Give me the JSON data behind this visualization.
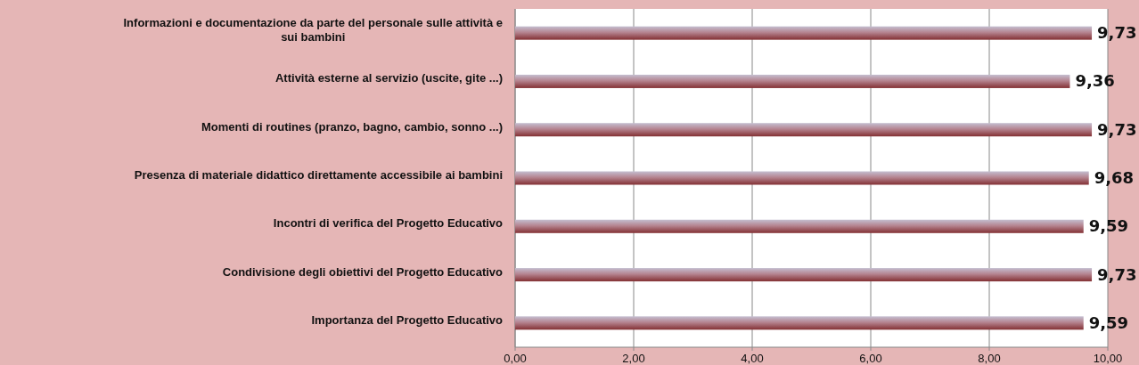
{
  "chart_data": {
    "type": "bar",
    "orientation": "horizontal",
    "categories": [
      "Informazioni e documentazione da parte del personale sulle attività e sui bambini",
      "Attività esterne al servizio (uscite, gite ...)",
      "Momenti di routines (pranzo, bagno, cambio, sonno ...)",
      "Presenza di materiale didattico direttamente accessibile ai bambini",
      "Incontri di verifica del Progetto Educativo",
      "Condivisione degli obiettivi del Progetto Educativo",
      "Importanza del Progetto Educativo"
    ],
    "values": [
      9.73,
      9.36,
      9.73,
      9.68,
      9.59,
      9.73,
      9.59
    ],
    "value_labels": [
      "9,73",
      "9,36",
      "9,73",
      "9,68",
      "9,59",
      "9,73",
      "9,59"
    ],
    "color": "#a23b3f",
    "xlim": [
      0,
      10
    ],
    "xticks": [
      {
        "value": 0,
        "label": "0,00"
      },
      {
        "value": 2,
        "label": "2,00"
      },
      {
        "value": 4,
        "label": "4,00"
      },
      {
        "value": 6,
        "label": "6,00"
      },
      {
        "value": 8,
        "label": "8,00"
      },
      {
        "value": 10,
        "label": "10,00"
      }
    ],
    "grid": "x"
  }
}
